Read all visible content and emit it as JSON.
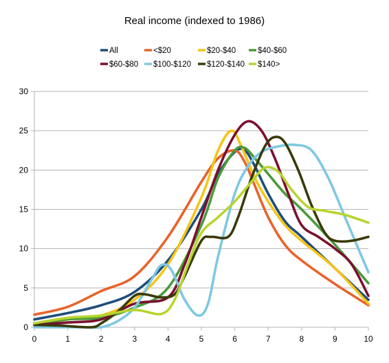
{
  "chart_data": {
    "type": "line",
    "title": "Real income (indexed to 1986)",
    "xlabel": "",
    "ylabel": "",
    "xlim": [
      0,
      10
    ],
    "ylim": [
      0,
      30
    ],
    "x_ticks": [
      0,
      1,
      2,
      3,
      4,
      5,
      6,
      7,
      8,
      9,
      10
    ],
    "y_ticks": [
      0,
      5,
      10,
      15,
      20,
      25,
      30
    ],
    "grid": true,
    "legend_position": "top",
    "series": [
      {
        "name": "All",
        "color": "#1f4e79",
        "points": [
          [
            0,
            1.0
          ],
          [
            1,
            1.8
          ],
          [
            2,
            2.8
          ],
          [
            3,
            4.5
          ],
          [
            4,
            8.5
          ],
          [
            5,
            15
          ],
          [
            5.5,
            19.5
          ],
          [
            6,
            22.3
          ],
          [
            6.3,
            22.5
          ],
          [
            6.6,
            20.5
          ],
          [
            7,
            17
          ],
          [
            7.5,
            13.5
          ],
          [
            8,
            11.5
          ],
          [
            9,
            7.5
          ],
          [
            10,
            3.5
          ]
        ]
      },
      {
        "name": "<$20",
        "color": "#e8632b",
        "points": [
          [
            0,
            1.6
          ],
          [
            1,
            2.6
          ],
          [
            2,
            4.6
          ],
          [
            3,
            6.5
          ],
          [
            4,
            11.5
          ],
          [
            5,
            18.5
          ],
          [
            5.5,
            21.5
          ],
          [
            6,
            22.5
          ],
          [
            6.3,
            21
          ],
          [
            6.6,
            18
          ],
          [
            7,
            14
          ],
          [
            7.5,
            10.5
          ],
          [
            8,
            8.5
          ],
          [
            9,
            5.5
          ],
          [
            10,
            2.8
          ]
        ]
      },
      {
        "name": "$20-$40",
        "color": "#f5c518",
        "points": [
          [
            0,
            0.3
          ],
          [
            1,
            1.0
          ],
          [
            2,
            1.5
          ],
          [
            3,
            3.5
          ],
          [
            4,
            8
          ],
          [
            5,
            16.5
          ],
          [
            5.5,
            22.5
          ],
          [
            5.9,
            25
          ],
          [
            6.2,
            23
          ],
          [
            6.6,
            19
          ],
          [
            7,
            16
          ],
          [
            7.5,
            13
          ],
          [
            8,
            11
          ],
          [
            9,
            7.5
          ],
          [
            10,
            3
          ]
        ]
      },
      {
        "name": "$40-$60",
        "color": "#4a9a3a",
        "points": [
          [
            0,
            0.3
          ],
          [
            1,
            1.0
          ],
          [
            2,
            1.2
          ],
          [
            3,
            2.5
          ],
          [
            4,
            5
          ],
          [
            5,
            13
          ],
          [
            5.5,
            19
          ],
          [
            6,
            22.5
          ],
          [
            6.3,
            22.8
          ],
          [
            6.6,
            21.5
          ],
          [
            7,
            19.5
          ],
          [
            7.5,
            17
          ],
          [
            8,
            15
          ],
          [
            9,
            10.5
          ],
          [
            10,
            5.6
          ]
        ]
      },
      {
        "name": "$60-$80",
        "color": "#7b0f2e",
        "points": [
          [
            0,
            0.3
          ],
          [
            1,
            0.6
          ],
          [
            2,
            1.0
          ],
          [
            3,
            3.0
          ],
          [
            4,
            3.8
          ],
          [
            4.5,
            8
          ],
          [
            5,
            14
          ],
          [
            5.5,
            20
          ],
          [
            6,
            24.5
          ],
          [
            6.4,
            26.2
          ],
          [
            6.8,
            25
          ],
          [
            7.2,
            21.5
          ],
          [
            7.6,
            17
          ],
          [
            8,
            13
          ],
          [
            8.5,
            11.5
          ],
          [
            9,
            10
          ],
          [
            9.5,
            8
          ],
          [
            10,
            4
          ]
        ]
      },
      {
        "name": "$100-$120",
        "color": "#7ec8e3",
        "points": [
          [
            0,
            0
          ],
          [
            1,
            0
          ],
          [
            1.5,
            0
          ],
          [
            2,
            0
          ],
          [
            2.5,
            0.8
          ],
          [
            3,
            2.5
          ],
          [
            3.5,
            6
          ],
          [
            3.8,
            7.9
          ],
          [
            4.1,
            7.3
          ],
          [
            4.5,
            3.5
          ],
          [
            4.9,
            1.5
          ],
          [
            5.2,
            3
          ],
          [
            5.5,
            9
          ],
          [
            6,
            17
          ],
          [
            6.4,
            20.5
          ],
          [
            6.8,
            22.3
          ],
          [
            7.3,
            23
          ],
          [
            7.8,
            23.2
          ],
          [
            8.3,
            22.5
          ],
          [
            8.8,
            19
          ],
          [
            9.3,
            14
          ],
          [
            9.7,
            10
          ],
          [
            10,
            7
          ]
        ]
      },
      {
        "name": "$120-$140",
        "color": "#3a3a0a",
        "points": [
          [
            0,
            0.3
          ],
          [
            0.8,
            0.2
          ],
          [
            1.7,
            0.0
          ],
          [
            2,
            0.5
          ],
          [
            2.5,
            2
          ],
          [
            3,
            4
          ],
          [
            3.3,
            4.2
          ],
          [
            3.8,
            3.8
          ],
          [
            4.2,
            4.2
          ],
          [
            4.5,
            6.5
          ],
          [
            5,
            11
          ],
          [
            5.3,
            11.5
          ],
          [
            5.8,
            11.5
          ],
          [
            6.1,
            14
          ],
          [
            6.5,
            19
          ],
          [
            6.9,
            23
          ],
          [
            7.2,
            24.2
          ],
          [
            7.5,
            23.5
          ],
          [
            7.9,
            20
          ],
          [
            8.3,
            15.5
          ],
          [
            8.7,
            12
          ],
          [
            9,
            11
          ],
          [
            9.5,
            11
          ],
          [
            10,
            11.5
          ]
        ]
      },
      {
        "name": "$140>",
        "color": "#b8d430",
        "points": [
          [
            0,
            0.5
          ],
          [
            1,
            1.2
          ],
          [
            2,
            1.5
          ],
          [
            3,
            2.2
          ],
          [
            3.8,
            1.7
          ],
          [
            4.2,
            3.5
          ],
          [
            4.6,
            8
          ],
          [
            5,
            12
          ],
          [
            5.5,
            14
          ],
          [
            6,
            16
          ],
          [
            6.5,
            18.5
          ],
          [
            6.9,
            20.3
          ],
          [
            7.3,
            19.8
          ],
          [
            7.7,
            17.5
          ],
          [
            8.2,
            15.3
          ],
          [
            8.7,
            14.8
          ],
          [
            9.3,
            14.3
          ],
          [
            10,
            13.3
          ]
        ]
      }
    ]
  }
}
